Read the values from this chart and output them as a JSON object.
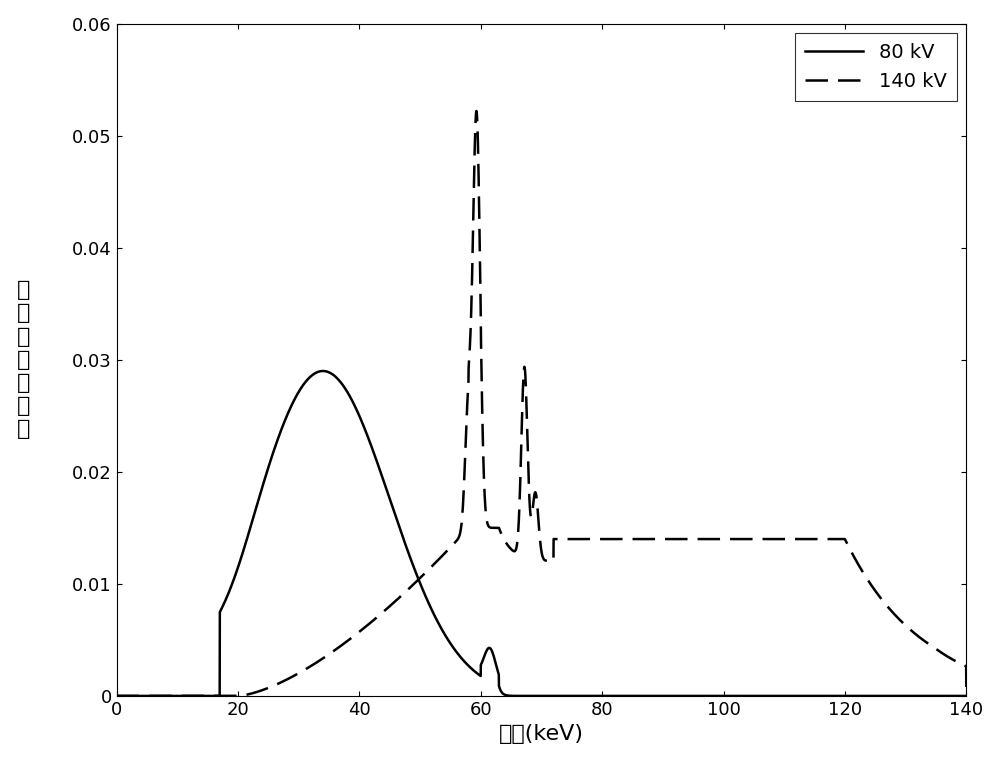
{
  "title": "",
  "xlabel": "能量(keV)",
  "ylabel": "归\n一\n化\n的\n能\n谱\n値",
  "xlim": [
    0,
    140
  ],
  "ylim": [
    0,
    0.06
  ],
  "xticks": [
    0,
    20,
    40,
    60,
    80,
    100,
    120,
    140
  ],
  "yticks": [
    0,
    0.01,
    0.02,
    0.03,
    0.04,
    0.05,
    0.06
  ],
  "legend_labels": [
    "80 kV",
    "140 kV"
  ],
  "line_color": "#000000",
  "background_color": "#ffffff",
  "figure_background": "#ffffff"
}
